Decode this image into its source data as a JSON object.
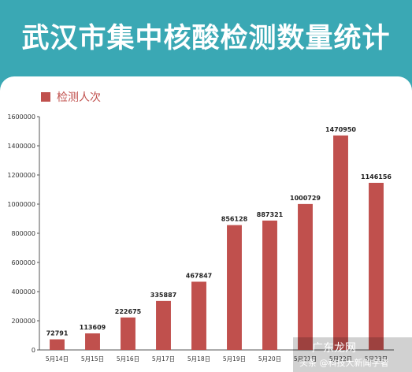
{
  "header": {
    "title": "武汉市集中核酸检测数量统计"
  },
  "watermark": {
    "main": "广东龙网",
    "sub": "头条 @科技大新闻学者"
  },
  "chart_data": {
    "type": "bar",
    "title": "",
    "xlabel": "",
    "ylabel": "",
    "categories": [
      "5月14日",
      "5月15日",
      "5月16日",
      "5月17日",
      "5月18日",
      "5月19日",
      "5月20日",
      "5月21日",
      "5月22日",
      "5月23日"
    ],
    "series": [
      {
        "name": "检测人次",
        "values": [
          72791,
          113609,
          222675,
          335887,
          467847,
          856128,
          887321,
          1000729,
          1470950,
          1146156
        ]
      }
    ],
    "ylim": [
      0,
      1600000
    ],
    "yticks": [
      0,
      200000,
      400000,
      600000,
      800000,
      1000000,
      1200000,
      1400000,
      1600000
    ],
    "grid": false,
    "legend": "top-left",
    "colors": {
      "bar": "#c0504d",
      "banner": "#3aa8b4"
    }
  }
}
